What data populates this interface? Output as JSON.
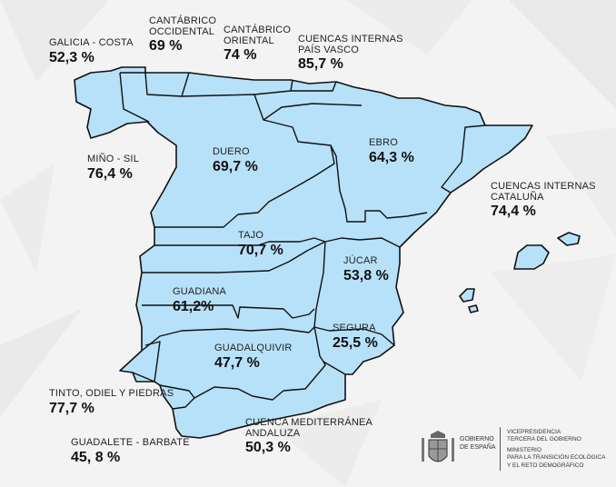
{
  "labels": {
    "galicia": {
      "name": "GALICIA - COSTA",
      "value": "52,3 %"
    },
    "cant_occ": {
      "name_1": "CANTÁBRICO",
      "name_2": "OCCIDENTAL",
      "value": "69 %"
    },
    "cant_ori": {
      "name_1": "CANTÁBRICO",
      "name_2": "ORIENTAL",
      "value": "74 %"
    },
    "pais_vasco": {
      "name_1": "CUENCAS INTERNAS",
      "name_2": "PAÍS VASCO",
      "value": "85,7 %"
    },
    "mino": {
      "name": "MIÑO - SIL",
      "value": "76,4 %"
    },
    "duero": {
      "name": "DUERO",
      "value": "69,7 %"
    },
    "ebro": {
      "name": "EBRO",
      "value": "64,3 %"
    },
    "cataluna": {
      "name_1": "CUENCAS INTERNAS",
      "name_2": "CATALUÑA",
      "value": "74,4 %"
    },
    "tajo": {
      "name": "TAJO",
      "value": "70,7 %"
    },
    "jucar": {
      "name": "JÚCAR",
      "value": "53,8 %"
    },
    "guadiana": {
      "name": "GUADIANA",
      "value": "61,2%"
    },
    "segura": {
      "name": "SEGURA",
      "value": "25,5 %"
    },
    "guadalquivir": {
      "name": "GUADALQUIVIR",
      "value": "47,7 %"
    },
    "tinto": {
      "name": "TINTO, ODIEL Y PIEDRAS",
      "value": "77,7 %"
    },
    "guadalete": {
      "name": "GUADALETE - BARBATE",
      "value": "45, 8 %"
    },
    "mediterranea": {
      "name_1": "CUENCA MEDITERRÁNEA",
      "name_2": "ANDALUZA",
      "value": "50,3 %"
    }
  },
  "footer": {
    "gobierno_1": "GOBIERNO",
    "gobierno_2": "DE ESPAÑA",
    "vice_1": "VICEPRESIDENCIA",
    "vice_2": "TERCERA DEL GOBIERNO",
    "min_1": "MINISTERIO",
    "min_2": "PARA LA TRANSICIÓN ECOLÓGICA",
    "min_3": "Y EL RETO DEMOGRÁFICO"
  },
  "colors": {
    "basin_fill": "#b7e1f8",
    "stroke": "#111111",
    "background": "#f3f3f3"
  }
}
